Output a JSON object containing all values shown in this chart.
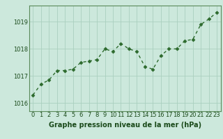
{
  "x": [
    0,
    1,
    2,
    3,
    4,
    5,
    6,
    7,
    8,
    9,
    10,
    11,
    12,
    13,
    14,
    15,
    16,
    17,
    18,
    19,
    20,
    21,
    22,
    23
  ],
  "y": [
    1016.3,
    1016.7,
    1016.85,
    1017.2,
    1017.2,
    1017.25,
    1017.5,
    1017.55,
    1017.6,
    1018.0,
    1017.9,
    1018.2,
    1018.0,
    1017.9,
    1017.35,
    1017.25,
    1017.75,
    1018.0,
    1018.0,
    1018.3,
    1018.35,
    1018.9,
    1019.1,
    1019.35
  ],
  "line_color": "#2d6a2d",
  "marker": "D",
  "marker_size": 2.5,
  "bg_color": "#cce8dc",
  "grid_color": "#aacfbf",
  "xlabel": "Graphe pression niveau de la mer (hPa)",
  "xlabel_fontsize": 7,
  "tick_fontsize": 6,
  "yticks": [
    1016,
    1017,
    1018,
    1019
  ],
  "ylim": [
    1015.7,
    1019.6
  ],
  "xlim": [
    -0.5,
    23.5
  ],
  "axis_label_color": "#1a4a1a",
  "linewidth": 1.0,
  "spine_color": "#5a8a5a"
}
